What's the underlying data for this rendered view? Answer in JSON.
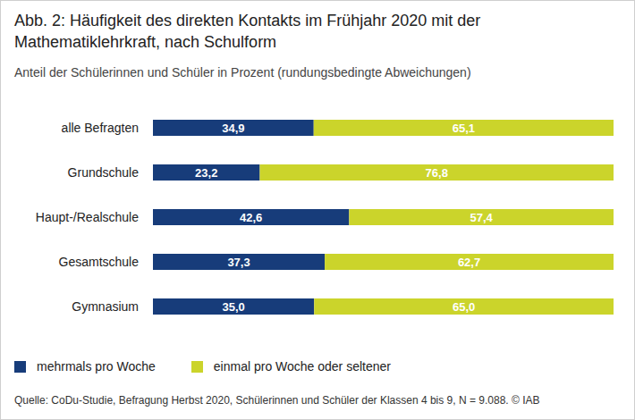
{
  "chart_data": {
    "type": "bar",
    "orientation": "horizontal",
    "stacked": true,
    "data_labels": true,
    "tick_labels": "y",
    "grid": false,
    "legend": "bottom-left",
    "title": "Abb. 2: Häufigkeit des direkten Kontakts im Frühjahr 2020 mit der Mathematiklehrkraft, nach Schulform",
    "subtitle": "Anteil der Schülerinnen und Schüler in Prozent (rundungsbedingte Abweichungen)",
    "source": "Quelle: CoDu-Studie, Befragung Herbst 2020, Schülerinnen und Schüler der Klassen 4 bis 9, N = 9.088. © IAB",
    "categories": [
      "alle Befragten",
      "Grundschule",
      "Haupt-/Realschule",
      "Gesamtschule",
      "Gymnasium"
    ],
    "xlim": [
      0,
      100
    ],
    "series": [
      {
        "name": "mehrmals pro Woche",
        "color": "#173c7a",
        "values": [
          34.9,
          23.2,
          42.6,
          37.3,
          35.0
        ],
        "value_labels": [
          "34,9",
          "23,2",
          "42,6",
          "37,3",
          "35,0"
        ]
      },
      {
        "name": "einmal pro Woche oder seltener",
        "color": "#cbd42b",
        "values": [
          65.1,
          76.8,
          57.4,
          62.7,
          65.0
        ],
        "value_labels": [
          "65,1",
          "76,8",
          "57,4",
          "62,7",
          "65,0"
        ]
      }
    ]
  }
}
